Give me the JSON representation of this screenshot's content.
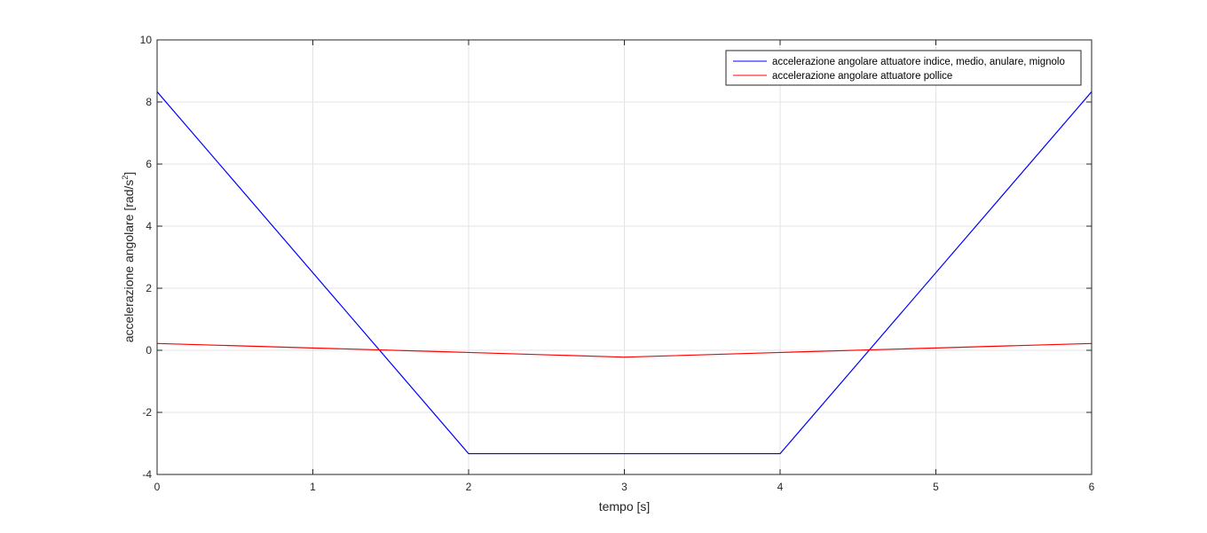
{
  "chart_data": {
    "type": "line",
    "title": "",
    "xlabel": "tempo [s]",
    "ylabel": "accelerazione angolare [rad/s",
    "ylabel_sup": "2",
    "ylabel_end": "]",
    "xlim": [
      0,
      6
    ],
    "ylim": [
      -4,
      10
    ],
    "x_ticks": [
      "0",
      "1",
      "2",
      "3",
      "4",
      "5",
      "6"
    ],
    "y_ticks": [
      "-4",
      "-2",
      "0",
      "2",
      "4",
      "6",
      "8",
      "10"
    ],
    "grid": true,
    "legend_position": "top-right",
    "series": [
      {
        "name": "accelerazione angolare attuatore indice, medio, anulare, mignolo",
        "color": "#0000ff",
        "x": [
          0,
          2,
          4,
          6
        ],
        "y": [
          8.33,
          -3.33,
          -3.33,
          8.33
        ]
      },
      {
        "name": "accelerazione angolare attuatore pollice",
        "color": "#ff0000",
        "x": [
          0,
          2,
          3,
          4,
          6
        ],
        "y": [
          0.22,
          -0.07,
          -0.22,
          -0.07,
          0.22
        ]
      }
    ]
  }
}
